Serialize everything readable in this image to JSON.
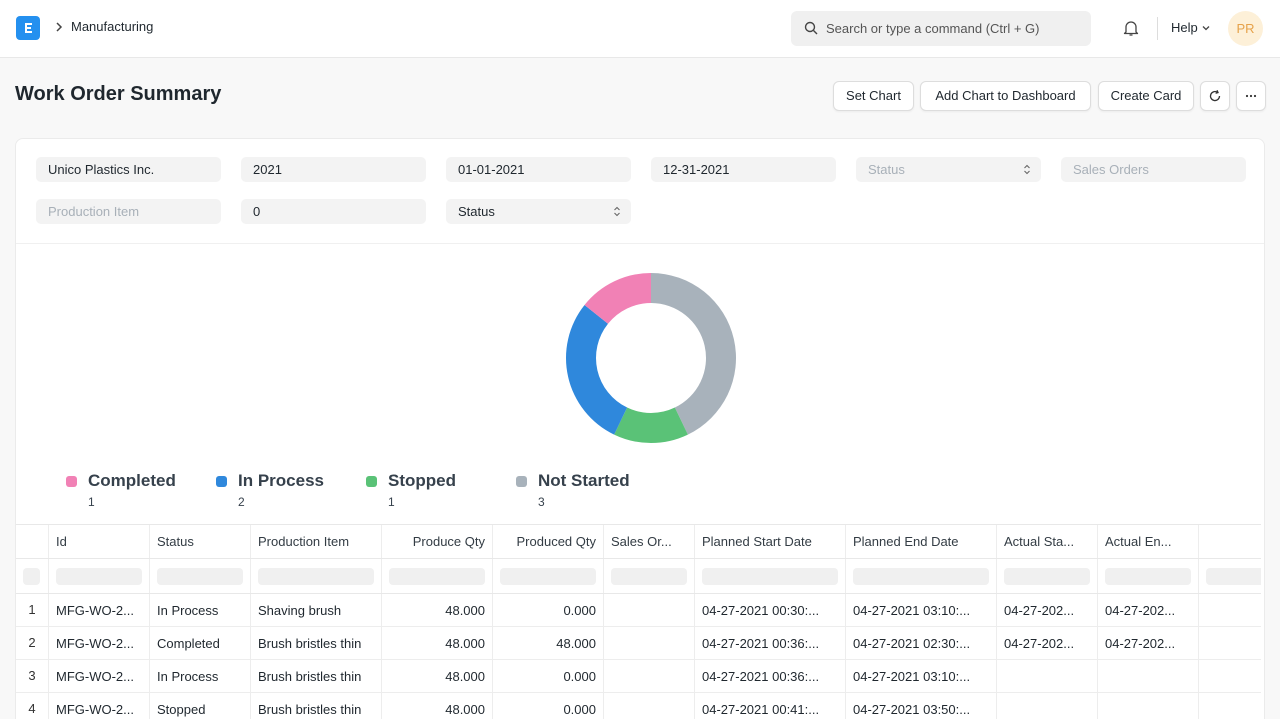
{
  "navbar": {
    "breadcrumb": "Manufacturing",
    "search_placeholder": "Search or type a command (Ctrl + G)",
    "help_label": "Help",
    "avatar_initials": "PR"
  },
  "page": {
    "title": "Work Order Summary",
    "buttons": {
      "set_chart": "Set Chart",
      "add_chart": "Add Chart to Dashboard",
      "create_card": "Create Card"
    }
  },
  "filters": {
    "company": "Unico Plastics Inc.",
    "fiscal_year": "2021",
    "from_date": "01-01-2021",
    "to_date": "12-31-2021",
    "status_placeholder": "Status",
    "sales_orders_placeholder": "Sales Orders",
    "production_item_placeholder": "Production Item",
    "age": "0",
    "status_select": "Status"
  },
  "chart_data": {
    "type": "pie",
    "labels": [
      "Completed",
      "In Process",
      "Stopped",
      "Not Started"
    ],
    "values": [
      1,
      2,
      1,
      3
    ],
    "colors": [
      "#f181b5",
      "#2f88dc",
      "#5ac277",
      "#a8b2bb"
    ],
    "legend": [
      {
        "label": "Completed",
        "value": "1"
      },
      {
        "label": "In Process",
        "value": "2"
      },
      {
        "label": "Stopped",
        "value": "1"
      },
      {
        "label": "Not Started",
        "value": "3"
      }
    ]
  },
  "table": {
    "columns": [
      "Id",
      "Status",
      "Production Item",
      "Produce Qty",
      "Produced Qty",
      "Sales Or...",
      "Planned Start Date",
      "Planned End Date",
      "Actual Sta...",
      "Actual En..."
    ],
    "rows": [
      {
        "index": "1",
        "id": "MFG-WO-2...",
        "status": "In Process",
        "item": "Shaving brush",
        "produce_qty": "48.000",
        "produced_qty": "0.000",
        "sales_order": "",
        "planned_start": "04-27-2021 00:30:...",
        "planned_end": "04-27-2021 03:10:...",
        "actual_start": "04-27-202...",
        "actual_end": "04-27-202..."
      },
      {
        "index": "2",
        "id": "MFG-WO-2...",
        "status": "Completed",
        "item": "Brush bristles thin",
        "produce_qty": "48.000",
        "produced_qty": "48.000",
        "sales_order": "",
        "planned_start": "04-27-2021 00:36:...",
        "planned_end": "04-27-2021 02:30:...",
        "actual_start": "04-27-202...",
        "actual_end": "04-27-202..."
      },
      {
        "index": "3",
        "id": "MFG-WO-2...",
        "status": "In Process",
        "item": "Brush bristles thin",
        "produce_qty": "48.000",
        "produced_qty": "0.000",
        "sales_order": "",
        "planned_start": "04-27-2021 00:36:...",
        "planned_end": "04-27-2021 03:10:...",
        "actual_start": "",
        "actual_end": ""
      },
      {
        "index": "4",
        "id": "MFG-WO-2...",
        "status": "Stopped",
        "item": "Brush bristles thin",
        "produce_qty": "48.000",
        "produced_qty": "0.000",
        "sales_order": "",
        "planned_start": "04-27-2021 00:41:...",
        "planned_end": "04-27-2021 03:50:...",
        "actual_start": "",
        "actual_end": ""
      }
    ]
  }
}
